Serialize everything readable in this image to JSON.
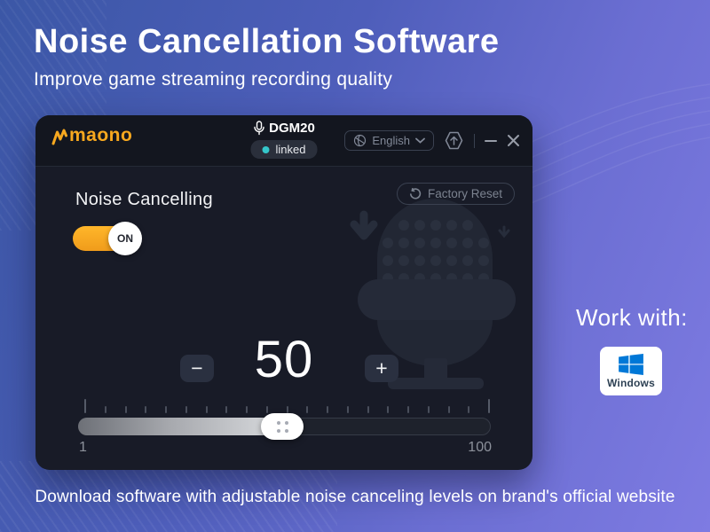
{
  "hero": {
    "title": "Noise Cancellation Software",
    "subtitle": "Improve game streaming recording quality"
  },
  "footer": {
    "text": "Download software with adjustable noise canceling levels on brand's official website"
  },
  "work_with": {
    "label": "Work with:",
    "platform": "Windows"
  },
  "app": {
    "brand": "maono",
    "device": {
      "name": "DGM20",
      "status": "linked"
    },
    "language": {
      "selected": "English"
    },
    "noise_cancelling": {
      "label": "Noise Cancelling",
      "toggle_state": "ON"
    },
    "factory_reset": {
      "label": "Factory Reset"
    },
    "level": {
      "value": "50",
      "minus": "−",
      "plus": "+"
    },
    "slider": {
      "min_label": "1",
      "max_label": "100",
      "value": 50,
      "min": 1,
      "max": 100,
      "tick_count": 21
    }
  },
  "colors": {
    "accent_orange": "#F7A81F",
    "status_teal": "#35C6CA",
    "windows_blue": "#0078D7",
    "window_bg": "#181B27",
    "background_gradient": [
      "#3B57A6",
      "#7E7BE2"
    ]
  }
}
